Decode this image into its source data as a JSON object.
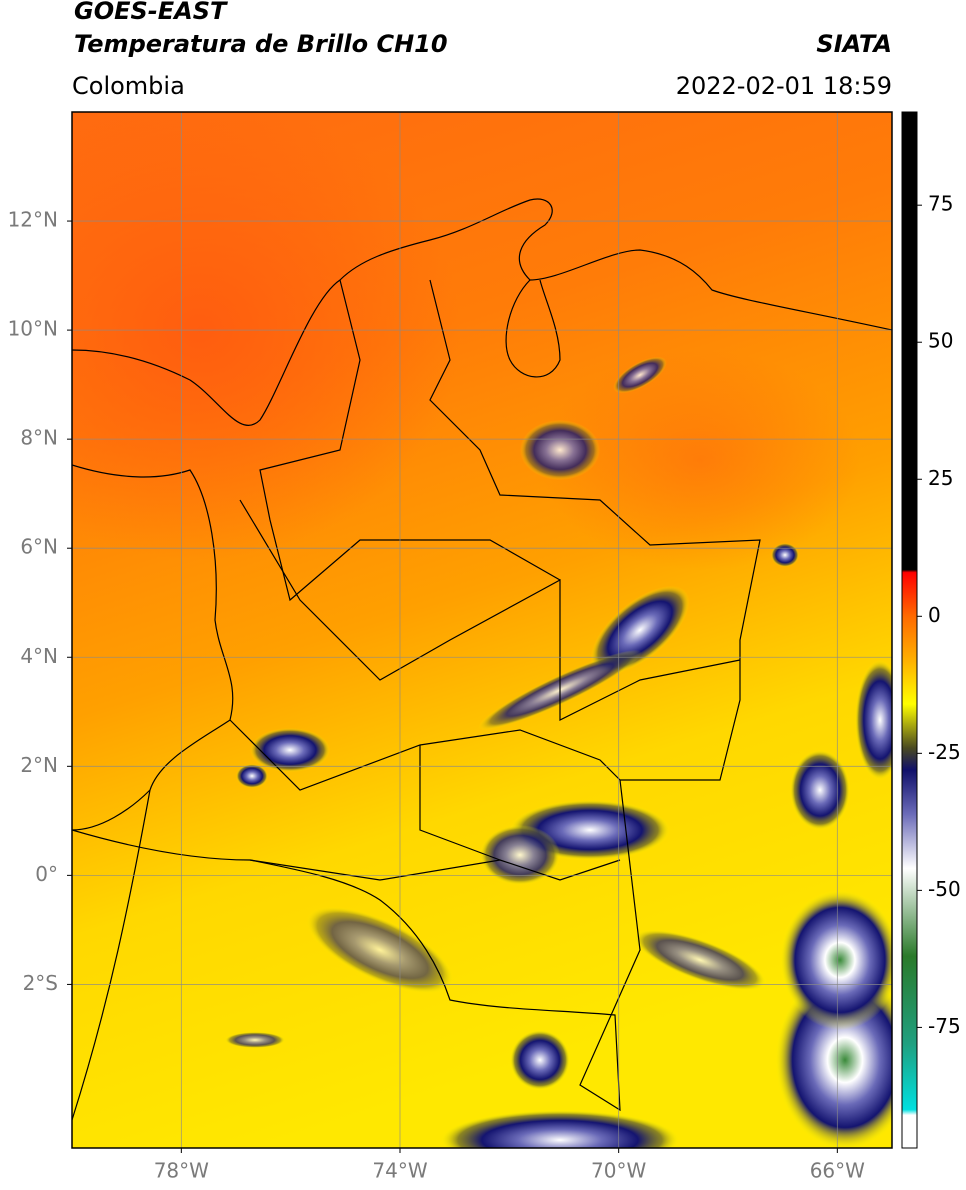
{
  "map": {
    "title": "GOES-EAST",
    "subtitle": "Temperatura de Brillo CH10",
    "region": "Colombia",
    "source": "SIATA",
    "datetime": "2022-02-01 18:59",
    "xlim": [
      -80,
      -65
    ],
    "ylim": [
      -5,
      14
    ],
    "xticks": [
      {
        "value": -78,
        "label": "78°W"
      },
      {
        "value": -74,
        "label": "74°W"
      },
      {
        "value": -70,
        "label": "70°W"
      },
      {
        "value": -66,
        "label": "66°W"
      }
    ],
    "yticks": [
      {
        "value": -2,
        "label": "2°S"
      },
      {
        "value": 0,
        "label": "0°"
      },
      {
        "value": 2,
        "label": "2°N"
      },
      {
        "value": 4,
        "label": "4°N"
      },
      {
        "value": 6,
        "label": "6°N"
      },
      {
        "value": 8,
        "label": "8°N"
      },
      {
        "value": 10,
        "label": "10°N"
      },
      {
        "value": 12,
        "label": "12°N"
      }
    ],
    "grid": true,
    "colorbar": {
      "lim": [
        -97,
        92
      ],
      "ticks": [
        75,
        50,
        25,
        0,
        -25,
        -50,
        -75
      ],
      "stops": [
        {
          "value": 92,
          "color": "#000000"
        },
        {
          "value": 8.5,
          "color": "#000000"
        },
        {
          "value": 8,
          "color": "#ff0000"
        },
        {
          "value": 0,
          "color": "#ff6a00"
        },
        {
          "value": -8,
          "color": "#ffb000"
        },
        {
          "value": -16,
          "color": "#ffff00"
        },
        {
          "value": -24,
          "color": "#4a4a20"
        },
        {
          "value": -28,
          "color": "#10106a"
        },
        {
          "value": -36,
          "color": "#6a6ab8"
        },
        {
          "value": -46,
          "color": "#ffffff"
        },
        {
          "value": -62,
          "color": "#2a7a2a"
        },
        {
          "value": -78,
          "color": "#20a080"
        },
        {
          "value": -90,
          "color": "#00e0e0"
        },
        {
          "value": -91,
          "color": "#ffffff"
        },
        {
          "value": -97,
          "color": "#ffffff"
        }
      ]
    }
  }
}
